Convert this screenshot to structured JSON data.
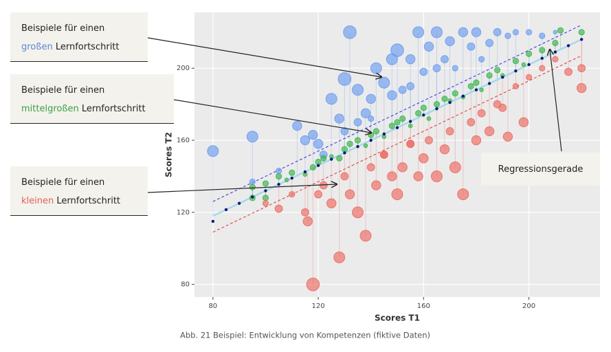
{
  "chart_data": {
    "type": "scatter",
    "x_label": "Scores T1",
    "y_label": "Scores T2",
    "caption": "Abb. 21 Beispiel: Entwicklung von Kompetenzen (fiktive Daten)",
    "xlim": [
      73,
      227
    ],
    "ylim": [
      73,
      231
    ],
    "xticks": [
      80,
      120,
      160,
      200
    ],
    "yticks": [
      80,
      120,
      160,
      200
    ],
    "grid": true,
    "regression": {
      "color": "#a6d8ea",
      "x": [
        80,
        220
      ],
      "values": [
        118,
        216
      ]
    },
    "bounds": [
      {
        "color": "#4a4ae0",
        "x": [
          80,
          220
        ],
        "values": [
          126,
          224
        ]
      },
      {
        "color": "#e05050",
        "x": [
          80,
          220
        ],
        "values": [
          109,
          207
        ]
      }
    ],
    "series": [
      {
        "color": "#6c9cf0",
        "x": [
          80,
          95,
          95,
          105,
          112,
          115,
          118,
          120,
          122,
          125,
          128,
          130,
          132,
          135,
          138,
          140,
          142,
          145,
          148,
          150,
          152,
          155,
          158,
          160,
          162,
          165,
          168,
          170,
          172,
          175,
          178,
          180,
          185,
          188,
          192,
          195,
          200,
          205,
          210,
          148,
          155,
          165,
          130,
          135,
          140,
          182
        ],
        "values": [
          154,
          162,
          137,
          143,
          168,
          160,
          163,
          158,
          152,
          183,
          172,
          194,
          220,
          188,
          175,
          183,
          200,
          192,
          205,
          210,
          188,
          205,
          220,
          198,
          212,
          220,
          205,
          215,
          200,
          220,
          212,
          220,
          214,
          220,
          218,
          220,
          220,
          218,
          220,
          185,
          190,
          200,
          165,
          170,
          172,
          205
        ],
        "sizes": [
          5,
          5,
          2,
          2,
          4,
          4,
          4,
          4,
          3,
          5,
          4,
          6,
          6,
          5,
          4,
          4,
          5,
          5,
          5,
          6,
          3,
          4,
          5,
          3,
          4,
          5,
          3,
          4,
          2,
          4,
          3,
          4,
          3,
          3,
          2,
          2,
          2,
          2,
          1,
          4,
          3,
          3,
          3,
          3,
          2,
          2
        ]
      },
      {
        "color": "#3cb44b",
        "x": [
          95,
          100,
          105,
          108,
          110,
          115,
          118,
          120,
          122,
          125,
          128,
          130,
          132,
          135,
          138,
          140,
          142,
          145,
          148,
          150,
          152,
          155,
          158,
          160,
          162,
          165,
          168,
          170,
          172,
          175,
          178,
          180,
          182,
          185,
          188,
          190,
          195,
          198,
          200,
          205,
          210,
          212,
          220,
          100,
          95
        ],
        "values": [
          134,
          136,
          140,
          138,
          142,
          141,
          145,
          148,
          150,
          151,
          150,
          155,
          158,
          160,
          157,
          163,
          165,
          162,
          168,
          170,
          172,
          168,
          175,
          178,
          172,
          180,
          183,
          182,
          186,
          184,
          190,
          192,
          188,
          196,
          199,
          196,
          204,
          202,
          208,
          210,
          214,
          221,
          220,
          128,
          128
        ],
        "sizes": [
          2,
          2,
          2,
          1,
          2,
          1,
          2,
          2,
          2,
          1,
          2,
          2,
          2,
          2,
          1,
          2,
          2,
          1,
          2,
          2,
          2,
          1,
          2,
          2,
          1,
          2,
          2,
          1,
          2,
          1,
          2,
          2,
          1,
          2,
          2,
          1,
          2,
          1,
          2,
          2,
          2,
          2,
          2,
          2,
          2
        ]
      },
      {
        "color": "#ec6a62",
        "x": [
          100,
          105,
          110,
          115,
          116,
          118,
          120,
          122,
          125,
          128,
          130,
          132,
          135,
          138,
          140,
          142,
          145,
          148,
          150,
          152,
          155,
          158,
          160,
          162,
          165,
          168,
          170,
          172,
          175,
          178,
          180,
          182,
          185,
          188,
          190,
          192,
          195,
          198,
          200,
          205,
          210,
          215,
          220,
          220,
          145,
          155
        ],
        "values": [
          125,
          122,
          130,
          120,
          115,
          80,
          130,
          135,
          125,
          95,
          140,
          130,
          120,
          107,
          145,
          135,
          152,
          140,
          130,
          145,
          158,
          140,
          150,
          160,
          140,
          155,
          165,
          145,
          130,
          170,
          160,
          175,
          165,
          180,
          178,
          162,
          190,
          170,
          195,
          200,
          205,
          198,
          200,
          189,
          152,
          158
        ],
        "sizes": [
          2,
          3,
          2,
          3,
          4,
          6,
          3,
          3,
          4,
          5,
          3,
          4,
          5,
          5,
          3,
          4,
          3,
          4,
          5,
          4,
          3,
          4,
          4,
          3,
          5,
          4,
          3,
          5,
          5,
          3,
          4,
          3,
          4,
          3,
          3,
          4,
          2,
          4,
          2,
          2,
          2,
          3,
          3,
          4,
          3,
          3
        ]
      },
      {
        "color": "#0c1a78",
        "x": [
          80,
          85,
          90,
          95,
          100,
          105,
          110,
          115,
          120,
          125,
          130,
          135,
          140,
          145,
          150,
          155,
          160,
          165,
          170,
          175,
          180,
          185,
          190,
          195,
          200,
          205,
          210,
          215,
          220
        ],
        "values": [
          115,
          121.5,
          125,
          128.5,
          132,
          135.5,
          139,
          142.5,
          146,
          149.5,
          153,
          156.5,
          160,
          163.5,
          167,
          170.5,
          174,
          177.5,
          181,
          184.5,
          188,
          191.5,
          195,
          198.5,
          202,
          205.5,
          209,
          212.5,
          216
        ],
        "sizes": [
          1,
          1,
          1,
          1,
          1,
          1,
          1,
          1,
          1,
          1,
          1,
          1,
          1,
          1,
          1,
          1,
          1,
          1,
          1,
          1,
          1,
          1,
          1,
          1,
          1,
          1,
          1,
          1,
          1
        ]
      }
    ]
  },
  "annotations": [
    {
      "line1": "Beispiele für einen",
      "highlight": "großen",
      "rest": "Lernfortschritt",
      "color": "#5b86d6"
    },
    {
      "line1": "Beispiele für einen",
      "highlight": "mittelgroßen",
      "rest": "Lernfortschritt",
      "color": "#3aa046"
    },
    {
      "line1": "Beispiele für einen",
      "highlight": "kleinen",
      "rest": "Lernfortschritt",
      "color": "#e0605a"
    },
    {
      "line1": "Regressionsgerade"
    }
  ]
}
